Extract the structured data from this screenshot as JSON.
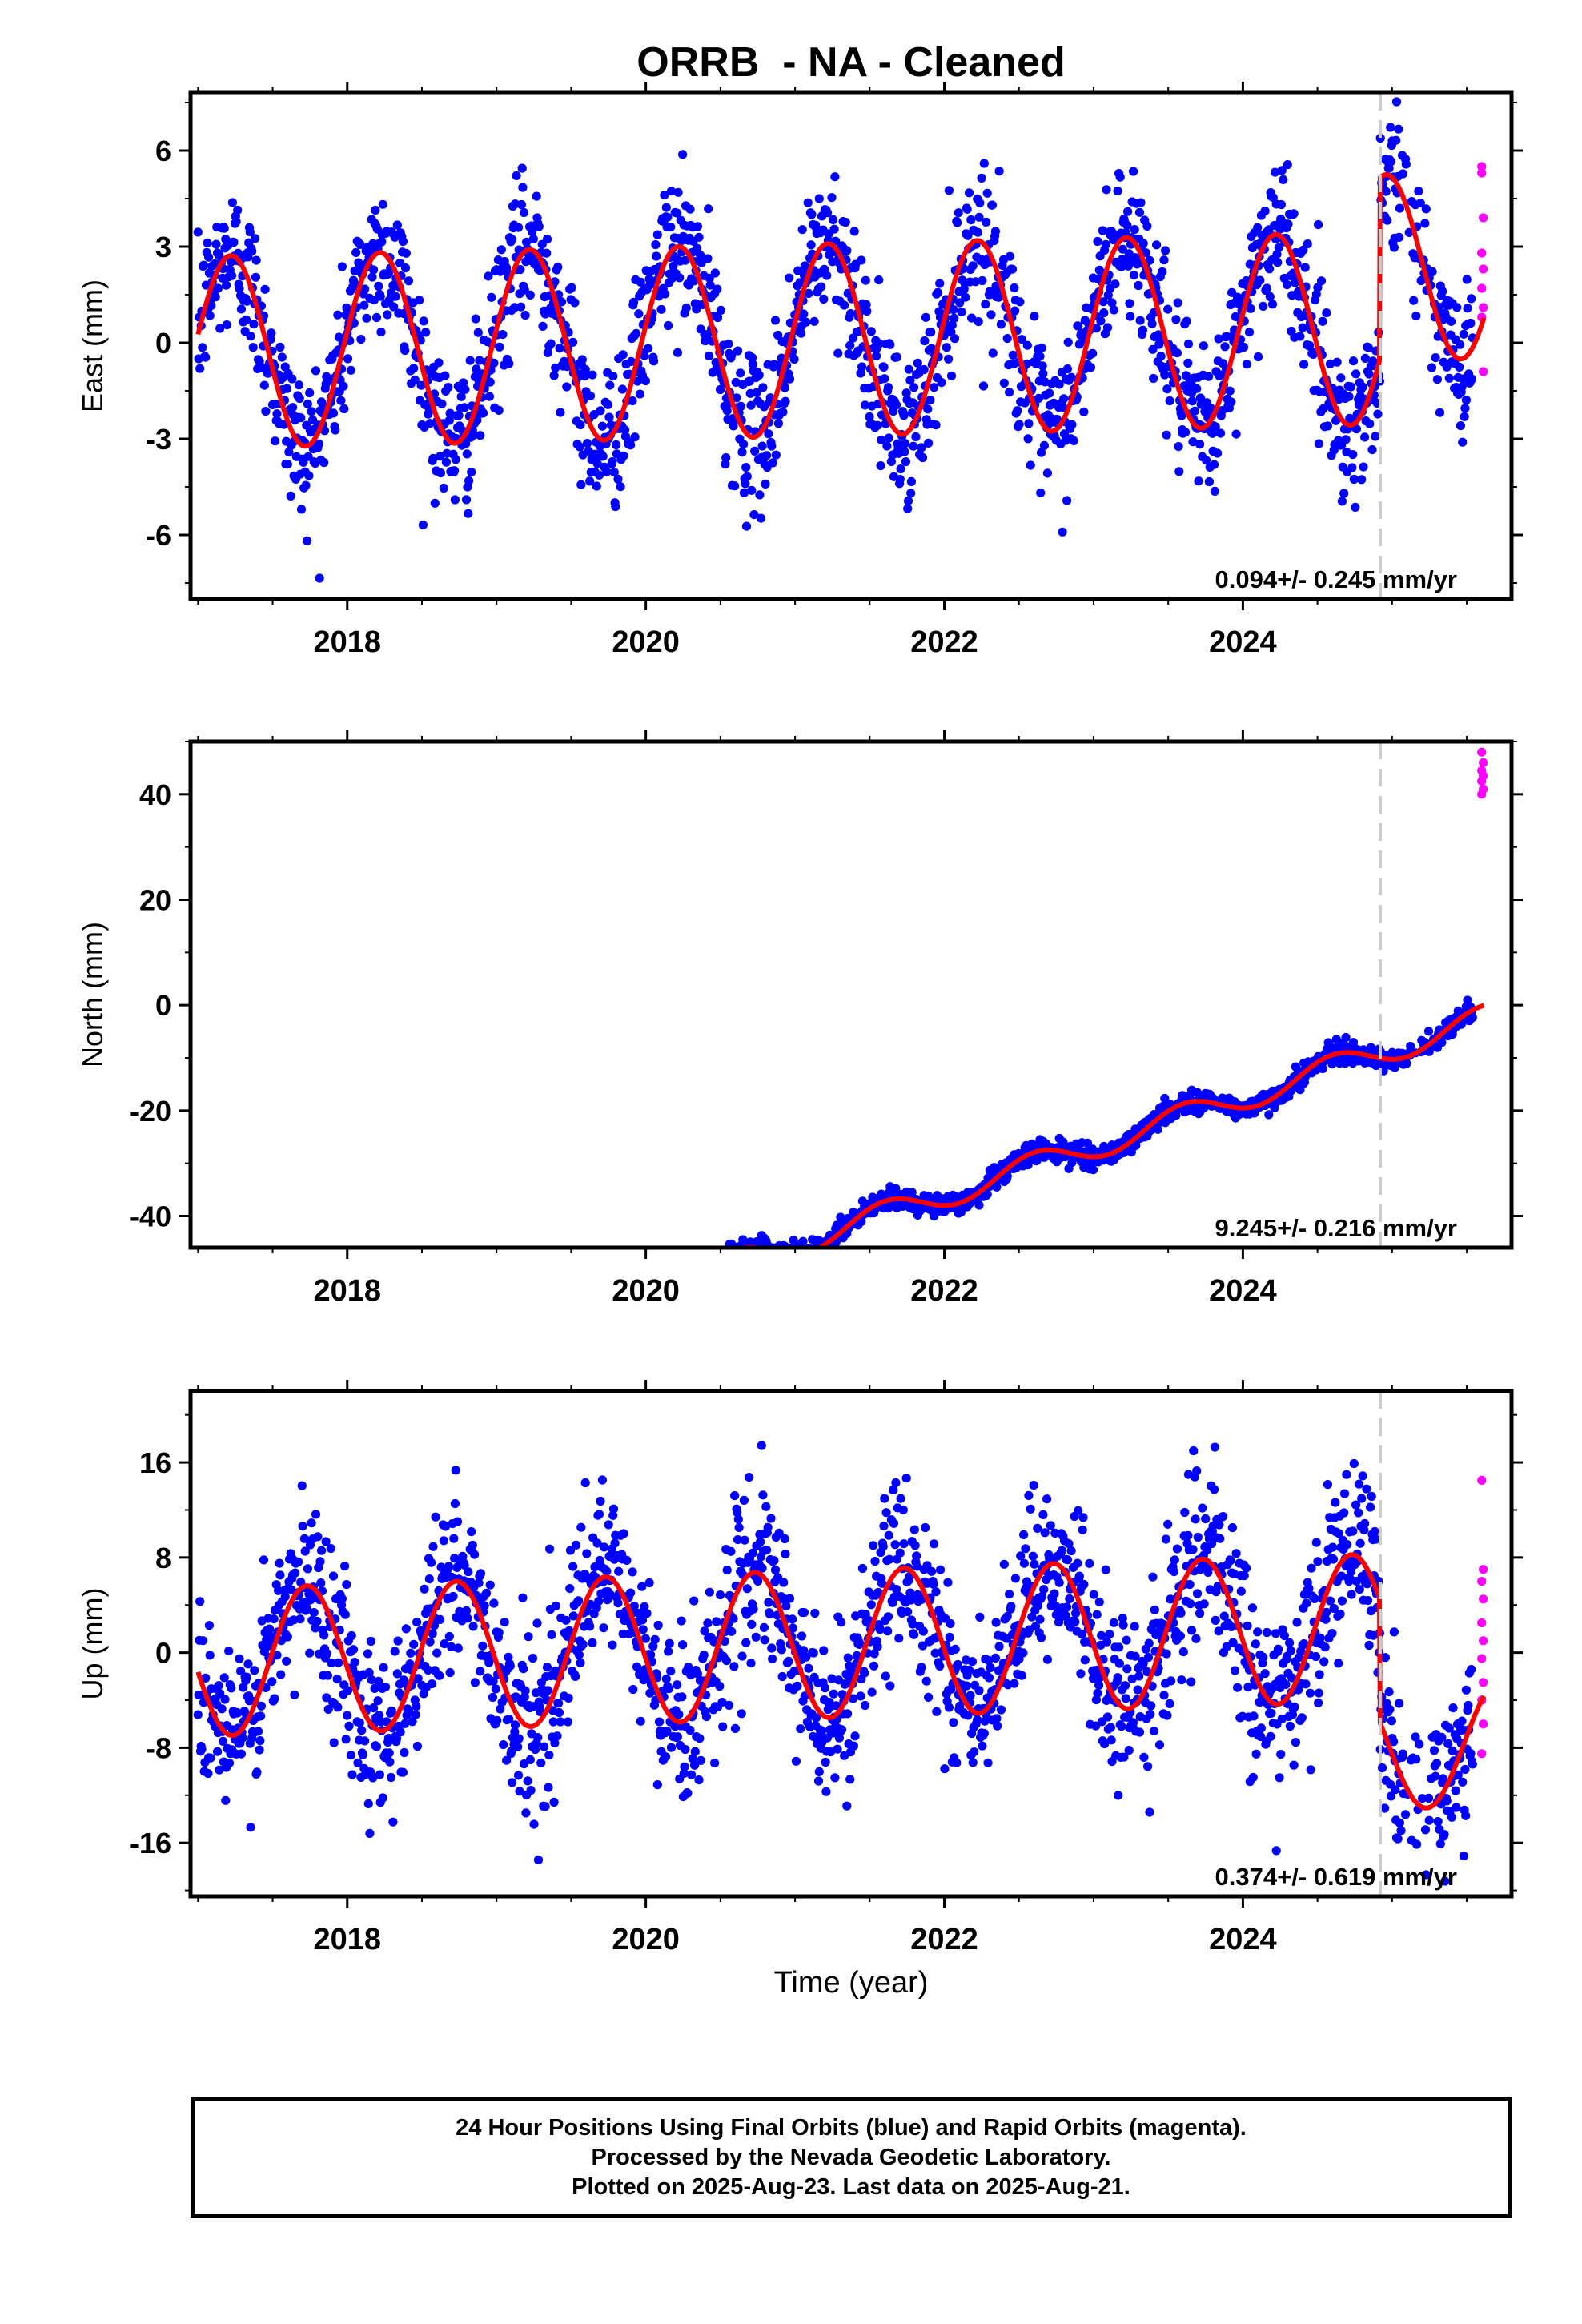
{
  "chart_data": {
    "type": "scatter",
    "title": "ORRB  - NA - Cleaned",
    "xlabel": "Time (year)",
    "x_range": [
      2016.95,
      2025.8
    ],
    "x_ticks": [
      "2018",
      "2020",
      "2022",
      "2024"
    ],
    "x_tick_values": [
      2018,
      2020,
      2022,
      2024
    ],
    "dashed_line_x": 2024.92,
    "legend": "none",
    "colors": {
      "final_orbits": "#0000ff",
      "rapid_orbits": "#ff00ff",
      "model": "#ff0000",
      "dashed_line": "#cccccc"
    },
    "panels": [
      {
        "name": "east",
        "ylabel": "East (mm)",
        "ylim": [
          -8,
          7.8
        ],
        "y_ticks": [
          "6",
          "3",
          "0",
          "-3",
          "-6"
        ],
        "y_tick_values": [
          6,
          3,
          0,
          -3,
          -6
        ],
        "rate_label": "0.094+/- 0.245 mm/yr",
        "model": {
          "offset": -0.3,
          "rate": 0.094,
          "amplitude": 3.0,
          "phase_year": 2016.97,
          "step_year": 2024.92,
          "step_size": 1.9,
          "post_step_amplitude": 2.9,
          "post_step_phase_year": 2024.71
        },
        "noise": 1.15,
        "final_data_end": 2025.54,
        "rapid_points": [
          [
            2025.6,
            5.5
          ],
          [
            2025.6,
            5.3
          ],
          [
            2025.61,
            3.9
          ],
          [
            2025.6,
            2.8
          ],
          [
            2025.61,
            2.3
          ],
          [
            2025.6,
            1.7
          ],
          [
            2025.61,
            1.1
          ],
          [
            2025.6,
            0.8
          ],
          [
            2025.61,
            -0.9
          ]
        ]
      },
      {
        "name": "north",
        "ylabel": "North (mm)",
        "ylim": [
          -46,
          50
        ],
        "y_ticks": [
          "40",
          "20",
          "0",
          "-20",
          "-40"
        ],
        "y_tick_values": [
          40,
          20,
          0,
          -20,
          -40
        ],
        "rate_label": "9.245+/- 0.216 mm/yr",
        "model": {
          "offset": -82.2,
          "rate": 9.245,
          "amplitude": 2.5,
          "phase_year": 2017.35
        },
        "noise": 1.0,
        "final_data_end": 2025.54,
        "rapid_points": [
          [
            2025.6,
            48.0
          ],
          [
            2025.61,
            46.0
          ],
          [
            2025.6,
            44.5
          ],
          [
            2025.61,
            43.5
          ],
          [
            2025.6,
            42.5
          ],
          [
            2025.61,
            41.0
          ],
          [
            2025.6,
            40.0
          ]
        ]
      },
      {
        "name": "up",
        "ylabel": "Up (mm)",
        "ylim": [
          -20.5,
          22
        ],
        "y_ticks": [
          "16",
          "8",
          "0",
          "-8",
          "-16"
        ],
        "y_tick_values": [
          16,
          8,
          0,
          -8,
          -16
        ],
        "rate_label": "0.374+/- 0.619 mm/yr",
        "model": {
          "offset": -0.85,
          "rate": 0.374,
          "amplitude": 6.2,
          "phase_year": 2017.48,
          "step_year": 2024.92,
          "step_size": -10.0,
          "post_step_amplitude": 5.3
        },
        "noise": 3.6,
        "final_data_end": 2025.54,
        "rapid_points": [
          [
            2025.6,
            14.5
          ],
          [
            2025.61,
            7.0
          ],
          [
            2025.6,
            6.0
          ],
          [
            2025.61,
            4.5
          ],
          [
            2025.6,
            2.5
          ],
          [
            2025.61,
            1.0
          ],
          [
            2025.6,
            -0.5
          ],
          [
            2025.61,
            -2.5
          ],
          [
            2025.6,
            -4.0
          ],
          [
            2025.61,
            -6.0
          ],
          [
            2025.6,
            -8.5
          ]
        ]
      }
    ]
  },
  "footer": {
    "line1": "24 Hour Positions Using Final Orbits (blue) and Rapid Orbits (magenta).",
    "line2": "Processed by the Nevada Geodetic Laboratory.",
    "line3": "Plotted on 2025-Aug-23. Last data on 2025-Aug-21."
  }
}
